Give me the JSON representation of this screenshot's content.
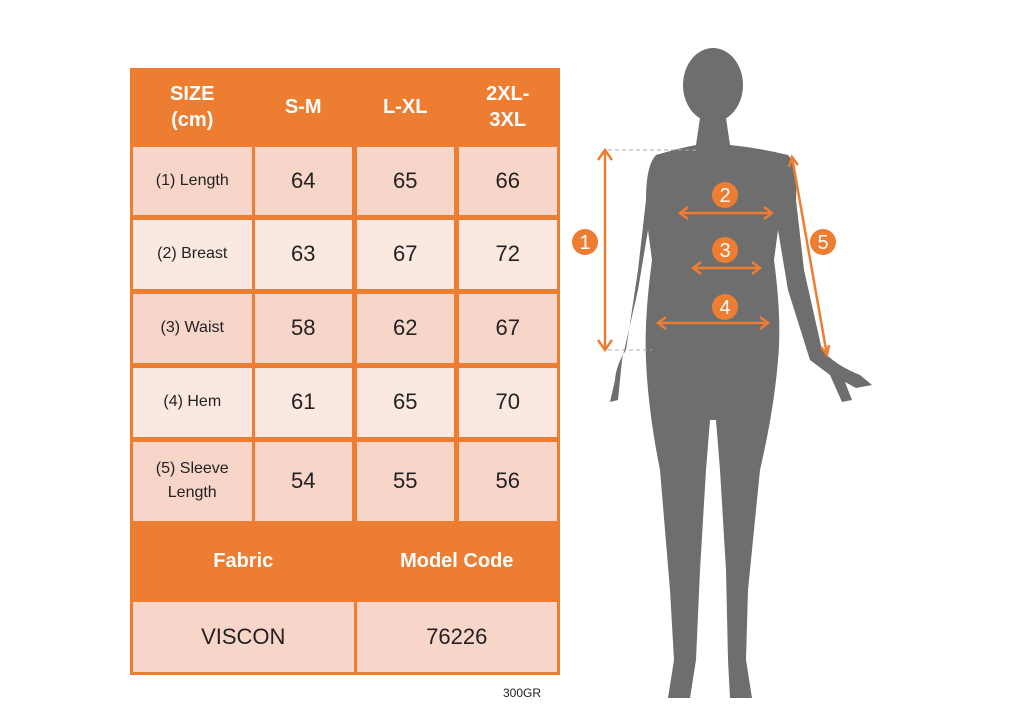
{
  "table": {
    "header": [
      "SIZE\n(cm)",
      "S-M",
      "L-XL",
      "2XL-\n3XL"
    ],
    "rows": [
      {
        "label": "(1) Length",
        "values": [
          "64",
          "65",
          "66"
        ]
      },
      {
        "label": "(2) Breast",
        "values": [
          "63",
          "67",
          "72"
        ]
      },
      {
        "label": "(3) Waist",
        "values": [
          "58",
          "62",
          "67"
        ]
      },
      {
        "label": "(4) Hem",
        "values": [
          "61",
          "65",
          "70"
        ]
      },
      {
        "label": "(5) Sleeve\nLength",
        "values": [
          "54",
          "55",
          "56"
        ]
      }
    ],
    "footer_headers": [
      "Fabric",
      "Model Code"
    ],
    "footer_values": [
      "VISCON",
      "76226"
    ]
  },
  "note": "300GR",
  "figure": {
    "markers": [
      "1",
      "2",
      "3",
      "4",
      "5"
    ]
  },
  "colors": {
    "accent": "#ED7D31",
    "cell_dark": "#F8D5C9",
    "cell_light": "#FBE8E1",
    "silhouette": "#6E6E6E"
  }
}
